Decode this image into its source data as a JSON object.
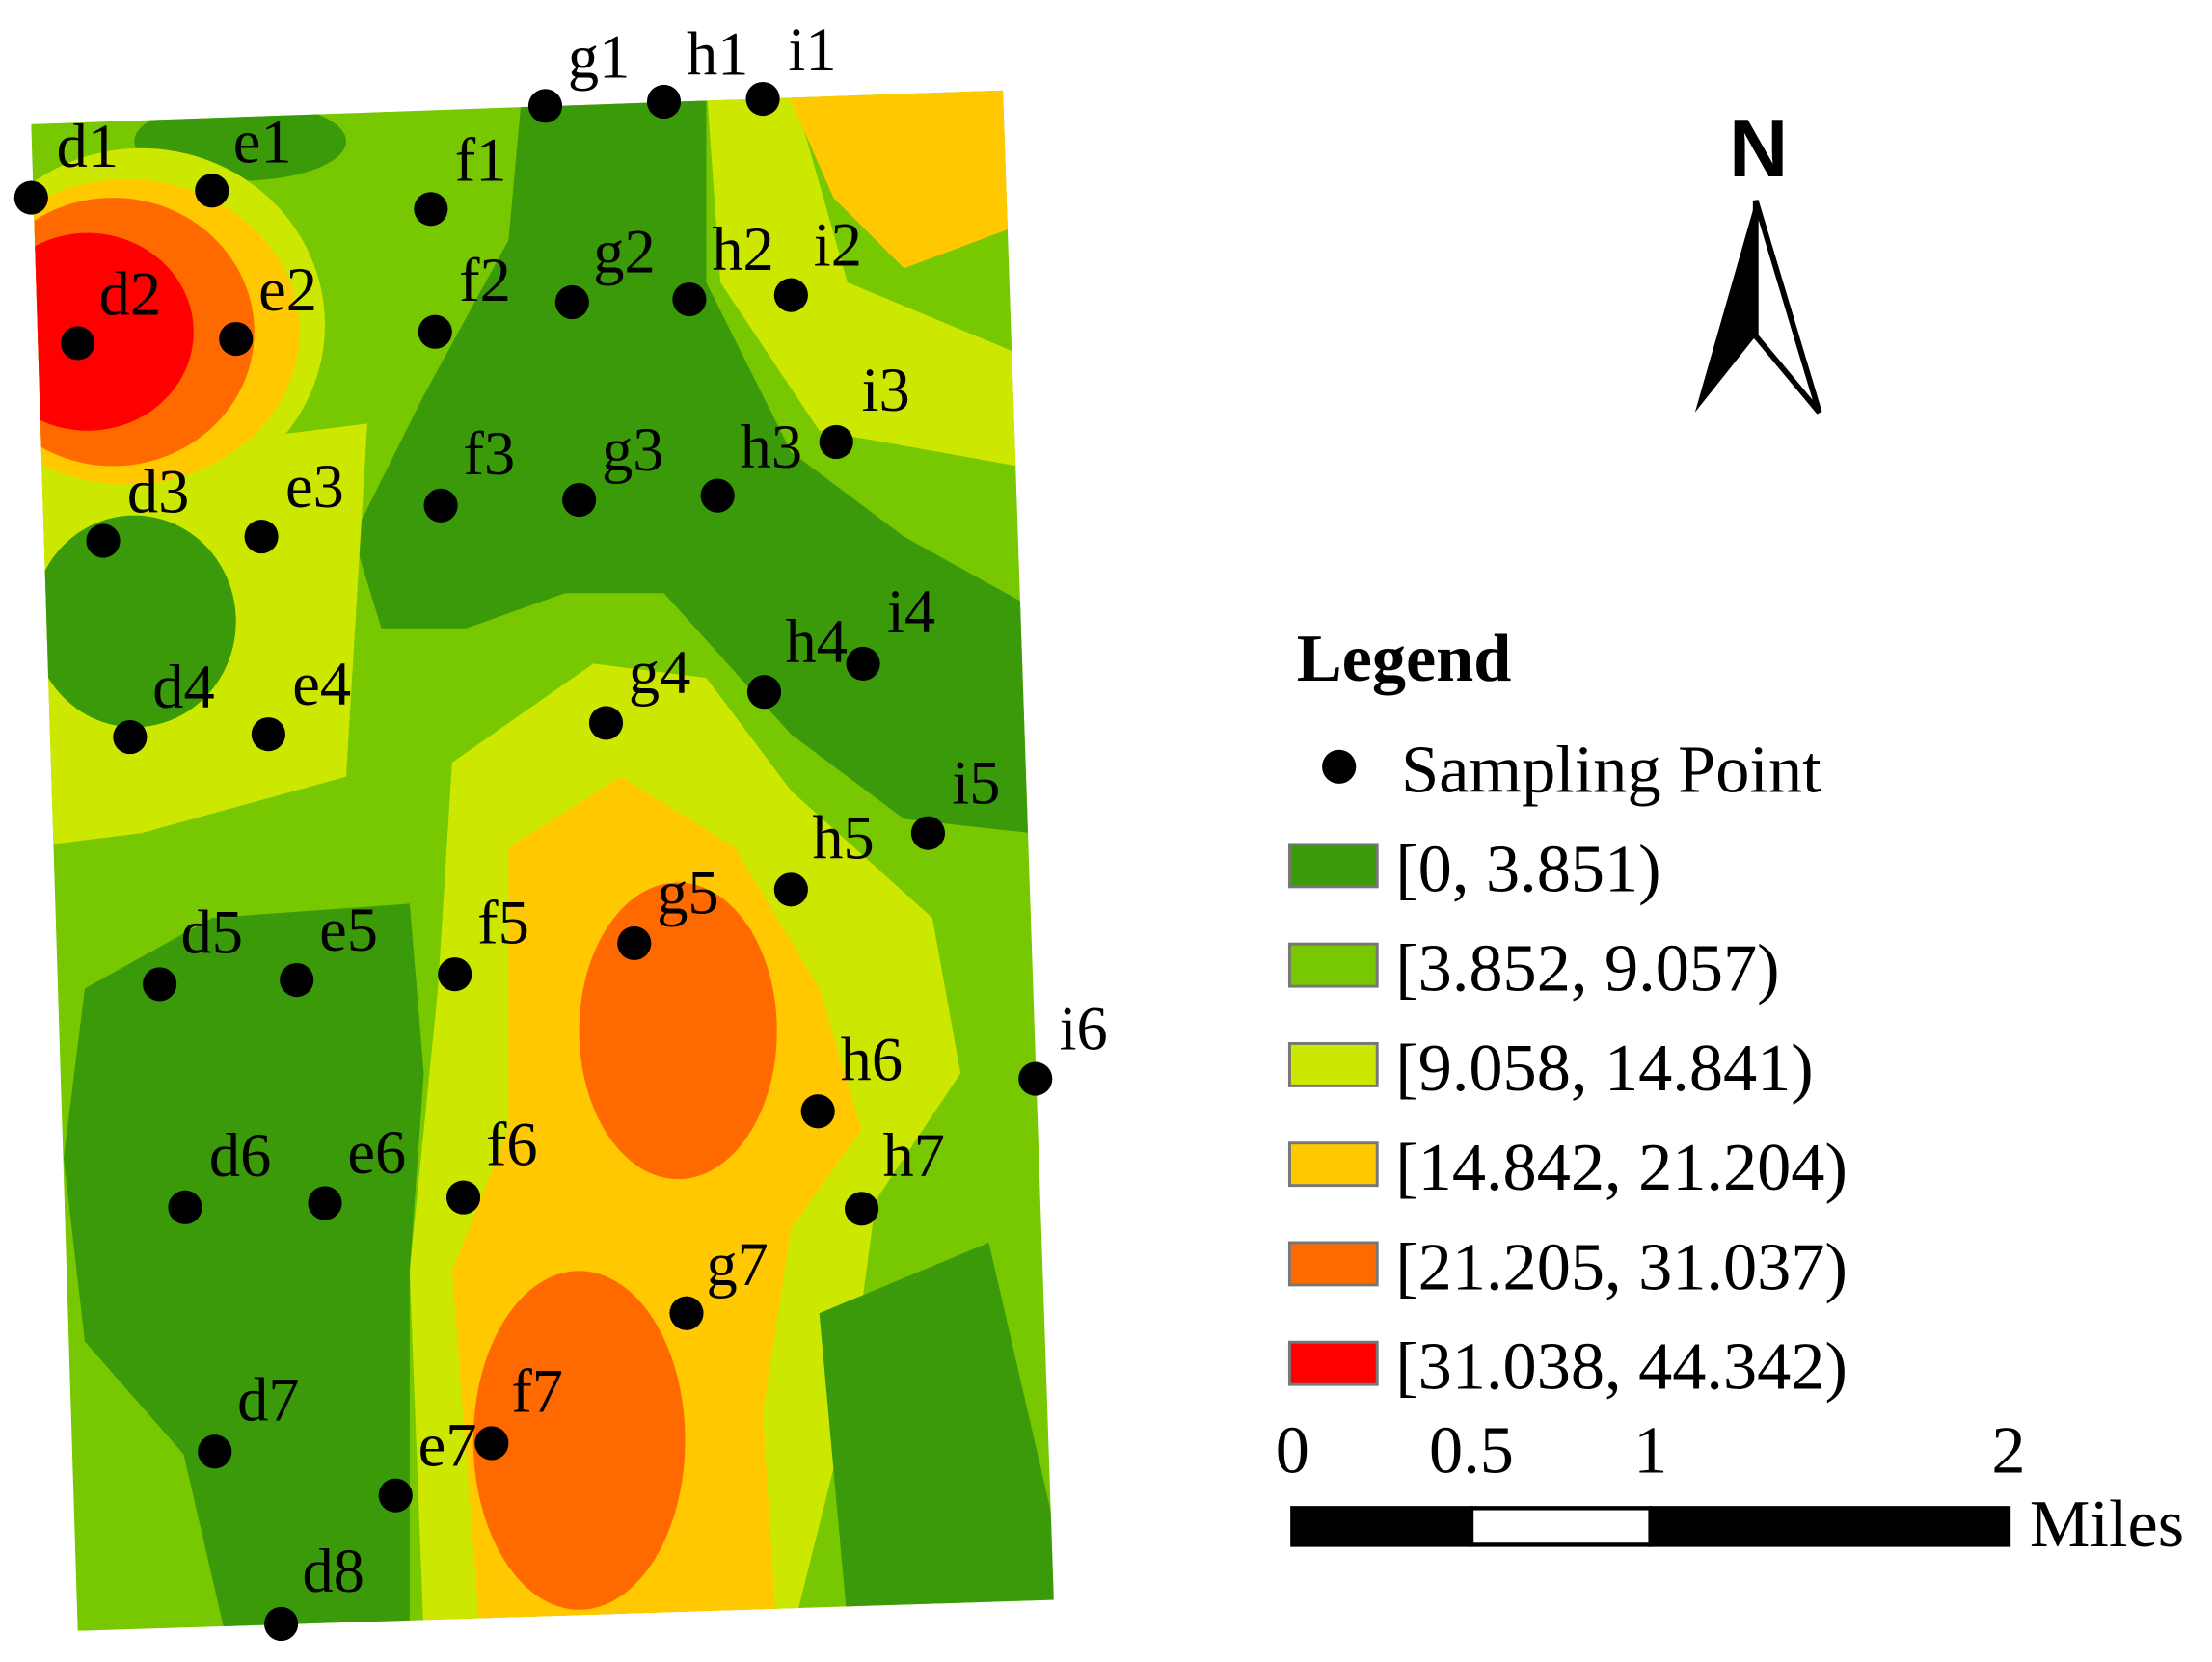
{
  "map": {
    "north_label": "N",
    "sampling_points": [
      {
        "label": "d1"
      },
      {
        "label": "e1"
      },
      {
        "label": "f1"
      },
      {
        "label": "g1"
      },
      {
        "label": "h1"
      },
      {
        "label": "i1"
      },
      {
        "label": "d2"
      },
      {
        "label": "e2"
      },
      {
        "label": "f2"
      },
      {
        "label": "g2"
      },
      {
        "label": "h2"
      },
      {
        "label": "i2"
      },
      {
        "label": "i3"
      },
      {
        "label": "d3"
      },
      {
        "label": "e3"
      },
      {
        "label": "f3"
      },
      {
        "label": "g3"
      },
      {
        "label": "h3"
      },
      {
        "label": "i4"
      },
      {
        "label": "h4"
      },
      {
        "label": "g4"
      },
      {
        "label": "d4"
      },
      {
        "label": "e4"
      },
      {
        "label": "i5"
      },
      {
        "label": "h5"
      },
      {
        "label": "g5"
      },
      {
        "label": "f5"
      },
      {
        "label": "e5"
      },
      {
        "label": "d5"
      },
      {
        "label": "i6"
      },
      {
        "label": "h6"
      },
      {
        "label": "h7"
      },
      {
        "label": "d6"
      },
      {
        "label": "e6"
      },
      {
        "label": "f6"
      },
      {
        "label": "g7"
      },
      {
        "label": "d7"
      },
      {
        "label": "f7"
      },
      {
        "label": "e7"
      },
      {
        "label": "d8"
      }
    ]
  },
  "legend": {
    "title": "Legend",
    "point_label": "Sampling Point",
    "classes": [
      {
        "label": "[0,  3.851)",
        "color": "#3a9a0a"
      },
      {
        "label": "[3.852,  9.057)",
        "color": "#77c800"
      },
      {
        "label": "[9.058,  14.841)",
        "color": "#cce800"
      },
      {
        "label": "[14.842,   21.204)",
        "color": "#ffc800"
      },
      {
        "label": "[21.205,  31.037)",
        "color": "#ff6a00"
      },
      {
        "label": "[31.038,  44.342)",
        "color": "#ff0000"
      }
    ]
  },
  "scale_bar": {
    "ticks": [
      0,
      0.5,
      1,
      2
    ],
    "unit": "Miles"
  }
}
